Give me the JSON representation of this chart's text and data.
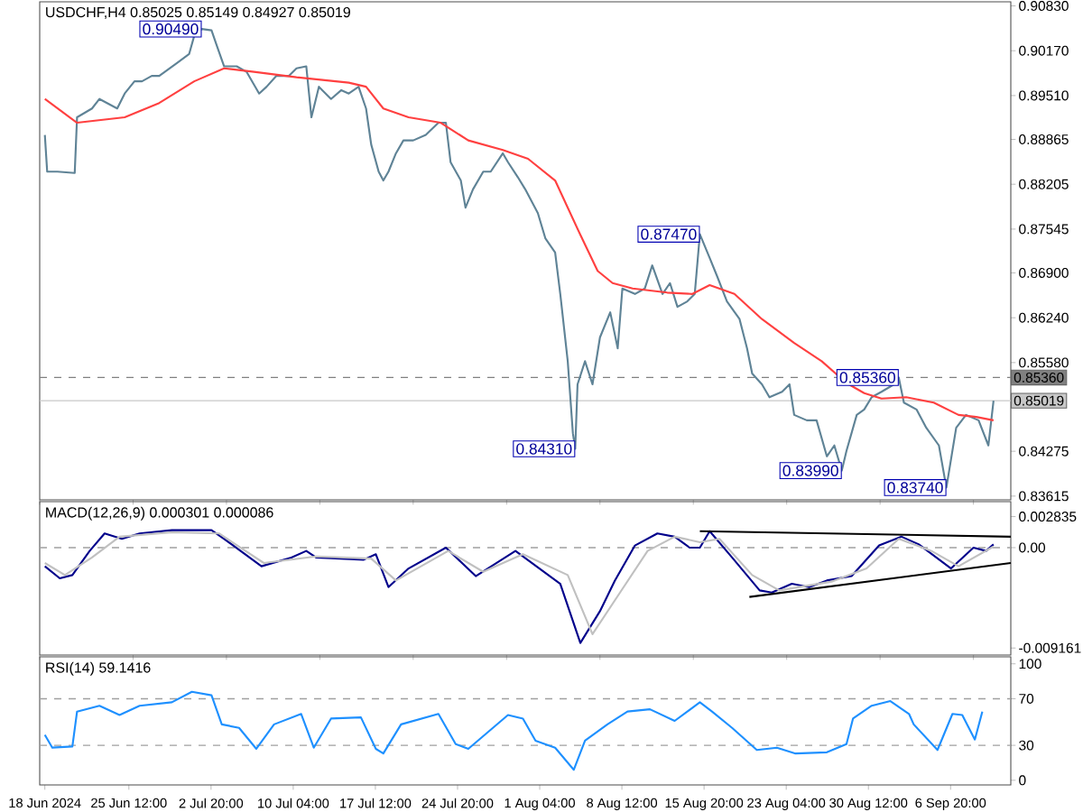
{
  "chart_data": [
    {
      "type": "line",
      "title": "USDCHF,H4 0.85025 0.85149 0.84927 0.85019",
      "xlim": [
        "2024-06-17T13:00",
        "2024-09-12T05:00"
      ],
      "ylim": [
        0.8356,
        0.9089
      ],
      "tick_labels": "y",
      "yticks": [
        {
          "value": 0.9083,
          "label": "0.90830"
        },
        {
          "value": 0.9017,
          "label": "0.90170"
        },
        {
          "value": 0.8951,
          "label": "0.89510"
        },
        {
          "value": 0.88865,
          "label": "0.88865"
        },
        {
          "value": 0.88205,
          "label": "0.88205"
        },
        {
          "value": 0.87545,
          "label": "0.87545"
        },
        {
          "value": 0.869,
          "label": "0.86900"
        },
        {
          "value": 0.8624,
          "label": "0.86240"
        },
        {
          "value": 0.8558,
          "label": "0.85580"
        },
        {
          "value": 0.84275,
          "label": "0.84275"
        },
        {
          "value": 0.83615,
          "label": "0.83615"
        }
      ],
      "series": [
        {
          "color": "#5f8396",
          "x": [
            "2024-06-18T00:00",
            "2024-06-18T05:00",
            "2024-06-19T03:00",
            "2024-06-20T16:00",
            "2024-06-20T21:00",
            "2024-06-22T05:00",
            "2024-06-22T21:00",
            "2024-06-24T11:00",
            "2024-06-25T03:00",
            "2024-06-26T00:00",
            "2024-06-26T16:00",
            "2024-06-27T13:00",
            "2024-06-28T05:00",
            "2024-06-29T19:00",
            "2024-06-30T21:00",
            "2024-07-01T08:00",
            "2024-07-02T00:00",
            "2024-07-02T21:00",
            "2024-07-03T08:00",
            "2024-07-04T00:00",
            "2024-07-05T03:00",
            "2024-07-06T00:00",
            "2024-07-07T03:00",
            "2024-07-07T19:00",
            "2024-07-08T16:00",
            "2024-07-09T19:00",
            "2024-07-10T11:00",
            "2024-07-11T08:00",
            "2024-07-11T19:00",
            "2024-07-12T11:00",
            "2024-07-13T13:00",
            "2024-07-14T11:00",
            "2024-07-15T03:00",
            "2024-07-16T00:00",
            "2024-07-16T16:00",
            "2024-07-17T03:00",
            "2024-07-17T19:00",
            "2024-07-18T05:00",
            "2024-07-18T16:00",
            "2024-07-19T08:00",
            "2024-07-20T00:00",
            "2024-07-20T21:00",
            "2024-07-22T00:00",
            "2024-07-23T03:00",
            "2024-07-23T19:00",
            "2024-07-24T05:00",
            "2024-07-25T03:00",
            "2024-07-25T13:00",
            "2024-07-26T05:00",
            "2024-07-27T03:00",
            "2024-07-27T19:00",
            "2024-07-28T21:00",
            "2024-07-29T08:00",
            "2024-07-30T05:00",
            "2024-07-30T21:00",
            "2024-08-01T00:00",
            "2024-08-01T16:00",
            "2024-08-02T13:00",
            "2024-08-03T00:00",
            "2024-08-03T16:00",
            "2024-08-04T03:00",
            "2024-08-04T08:00",
            "2024-08-04T13:00",
            "2024-08-05T05:00",
            "2024-08-05T21:00",
            "2024-08-06T13:00",
            "2024-08-07T11:00",
            "2024-08-08T03:00",
            "2024-08-08T13:00",
            "2024-08-09T16:00",
            "2024-08-10T13:00",
            "2024-08-11T05:00",
            "2024-08-12T03:00",
            "2024-08-12T19:00",
            "2024-08-13T11:00",
            "2024-08-14T08:00",
            "2024-08-15T00:00",
            "2024-08-15T11:00",
            "2024-08-16T08:00",
            "2024-08-17T00:00",
            "2024-08-17T21:00",
            "2024-08-19T00:00",
            "2024-08-19T16:00",
            "2024-08-20T03:00",
            "2024-08-21T00:00",
            "2024-08-21T16:00",
            "2024-08-22T19:00",
            "2024-08-23T11:00",
            "2024-08-23T21:00",
            "2024-08-25T00:00",
            "2024-08-25T21:00",
            "2024-08-26T19:00",
            "2024-08-27T11:00",
            "2024-08-28T03:00",
            "2024-08-28T13:00",
            "2024-08-29T11:00",
            "2024-08-30T03:00",
            "2024-08-30T19:00",
            "2024-08-31T16:00",
            "2024-09-01T19:00",
            "2024-09-02T05:00",
            "2024-09-02T16:00",
            "2024-09-03T19:00",
            "2024-09-04T16:00",
            "2024-09-05T19:00",
            "2024-09-06T11:00",
            "2024-09-07T08:00",
            "2024-09-08T05:00",
            "2024-09-09T08:00",
            "2024-09-10T05:00",
            "2024-09-10T16:00"
          ],
          "values": [
            0.8893,
            0.8839,
            0.8839,
            0.8837,
            0.8919,
            0.8932,
            0.8946,
            0.8932,
            0.8954,
            0.8972,
            0.8972,
            0.898,
            0.898,
            0.8999,
            0.9012,
            0.9039,
            0.9049,
            0.9047,
            0.9025,
            0.8994,
            0.8994,
            0.8986,
            0.8954,
            0.8964,
            0.898,
            0.898,
            0.8991,
            0.8994,
            0.8919,
            0.8964,
            0.8946,
            0.8959,
            0.8954,
            0.8964,
            0.8932,
            0.8879,
            0.8839,
            0.8826,
            0.8839,
            0.8866,
            0.8885,
            0.8885,
            0.8893,
            0.8911,
            0.8911,
            0.8853,
            0.8826,
            0.8786,
            0.8813,
            0.8839,
            0.8839,
            0.8866,
            0.8853,
            0.8831,
            0.8813,
            0.8778,
            0.8741,
            0.872,
            0.8659,
            0.856,
            0.8454,
            0.8431,
            0.8526,
            0.856,
            0.8526,
            0.8595,
            0.8632,
            0.8579,
            0.8667,
            0.8659,
            0.8667,
            0.8701,
            0.8659,
            0.8675,
            0.864,
            0.8648,
            0.8659,
            0.8747,
            0.8712,
            0.8685,
            0.8648,
            0.8622,
            0.8579,
            0.8542,
            0.8526,
            0.8507,
            0.8515,
            0.8526,
            0.8481,
            0.8473,
            0.8473,
            0.842,
            0.8436,
            0.8399,
            0.8428,
            0.8481,
            0.8489,
            0.8507,
            0.8515,
            0.8526,
            0.8536,
            0.8499,
            0.8489,
            0.8462,
            0.8436,
            0.8374,
            0.8462,
            0.8481,
            0.8473,
            0.8436,
            0.8502
          ]
        },
        {
          "color": "#ff4040",
          "x": [
            "2024-06-18T00:00",
            "2024-06-20T21:00",
            "2024-06-25T03:00",
            "2024-06-28T05:00",
            "2024-07-01T08:00",
            "2024-07-04T00:00",
            "2024-07-06T16:00",
            "2024-07-10T11:00",
            "2024-07-15T03:00",
            "2024-07-16T16:00",
            "2024-07-18T05:00",
            "2024-07-20T11:00",
            "2024-07-23T08:00",
            "2024-07-25T19:00",
            "2024-07-28T21:00",
            "2024-07-31T03:00",
            "2024-08-02T13:00",
            "2024-08-04T19:00",
            "2024-08-06T08:00",
            "2024-08-07T16:00",
            "2024-08-09T11:00",
            "2024-08-12T13:00",
            "2024-08-14T19:00",
            "2024-08-16T08:00",
            "2024-08-18T13:00",
            "2024-08-21T00:00",
            "2024-08-23T21:00",
            "2024-08-26T08:00",
            "2024-08-28T13:00",
            "2024-08-30T03:00",
            "2024-08-31T16:00",
            "2024-09-02T21:00",
            "2024-09-05T08:00",
            "2024-09-07T13:00",
            "2024-09-09T03:00",
            "2024-09-10T16:00"
          ],
          "values": [
            0.8946,
            0.8911,
            0.8919,
            0.894,
            0.8972,
            0.8991,
            0.8986,
            0.8978,
            0.897,
            0.8964,
            0.8932,
            0.8919,
            0.8911,
            0.8885,
            0.8871,
            0.8858,
            0.8826,
            0.8746,
            0.8693,
            0.8675,
            0.8667,
            0.8661,
            0.8659,
            0.8672,
            0.8659,
            0.8622,
            0.8587,
            0.856,
            0.8528,
            0.8513,
            0.8505,
            0.8507,
            0.8499,
            0.8481,
            0.8478,
            0.8473
          ]
        }
      ],
      "ref_lines": [
        {
          "axis": "y",
          "value": 0.8536,
          "label": "0.85360",
          "color": "#808080",
          "line_style": "dashed"
        },
        {
          "axis": "y",
          "value": 0.85019,
          "label": "0.85019",
          "color": "#c8c8c8",
          "line_style": "solid"
        }
      ],
      "annotations": [
        {
          "text": "0.90490",
          "x": "2024-07-02T00:00",
          "y": 0.9049
        },
        {
          "text": "0.84310",
          "x": "2024-08-04T08:00",
          "y": 0.8431
        },
        {
          "text": "0.87470",
          "x": "2024-08-15T11:00",
          "y": 0.8747
        },
        {
          "text": "0.83990",
          "x": "2024-08-28T03:00",
          "y": 0.8399
        },
        {
          "text": "0.85360",
          "x": "2024-09-02T05:00",
          "y": 0.8536
        },
        {
          "text": "0.83740",
          "x": "2024-09-06T11:00",
          "y": 0.8374
        }
      ]
    },
    {
      "type": "line",
      "title": "MACD(12,26,9) 0.000301 0.000086",
      "xlim": [
        "2024-06-17T13:00",
        "2024-09-12T05:00"
      ],
      "ylim": [
        -0.0098,
        0.0042
      ],
      "tick_labels": "y",
      "yticks": [
        0.002835,
        {
          "value": 0,
          "label": "0.00"
        },
        -0.009161
      ],
      "series": [
        {
          "color": "#00008b",
          "x": [
            "2024-06-18T00:00",
            "2024-06-19T08:00",
            "2024-06-20T11:00",
            "2024-06-22T00:00",
            "2024-06-23T08:00",
            "2024-06-24T21:00",
            "2024-06-26T11:00",
            "2024-06-29T08:00",
            "2024-07-02T21:00",
            "2024-07-04T00:00",
            "2024-07-07T08:00",
            "2024-07-10T00:00",
            "2024-07-11T08:00",
            "2024-07-12T05:00",
            "2024-07-16T11:00",
            "2024-07-17T13:00",
            "2024-07-18T16:00",
            "2024-07-20T11:00",
            "2024-07-23T19:00",
            "2024-07-26T11:00",
            "2024-07-30T00:00",
            "2024-08-03T00:00",
            "2024-08-04T19:00",
            "2024-08-06T13:00",
            "2024-08-07T21:00",
            "2024-08-09T16:00",
            "2024-08-11T16:00",
            "2024-08-13T05:00",
            "2024-08-14T13:00",
            "2024-08-15T11:00",
            "2024-08-16T08:00",
            "2024-08-18T08:00",
            "2024-08-20T19:00",
            "2024-08-21T21:00",
            "2024-08-23T16:00",
            "2024-08-25T05:00",
            "2024-08-26T19:00",
            "2024-08-29T00:00",
            "2024-08-31T11:00",
            "2024-09-02T11:00",
            "2024-09-04T00:00",
            "2024-09-06T21:00",
            "2024-09-08T21:00",
            "2024-09-10T00:00",
            "2024-09-10T16:00"
          ],
          "values": [
            -0.0017,
            -0.0028,
            -0.0025,
            -0.0003,
            0.0013,
            0.0008,
            0.0013,
            0.0016,
            0.0016,
            0.0008,
            -0.0017,
            -0.0009,
            -0.0003,
            -0.0009,
            -0.0011,
            -0.0006,
            -0.0036,
            -0.0019,
            0,
            -0.0026,
            -0.0003,
            -0.0033,
            -0.0087,
            -0.0058,
            -0.003,
            0.0002,
            0.0013,
            0.001,
            0,
            0,
            0.0015,
            -0.0009,
            -0.0039,
            -0.0041,
            -0.0033,
            -0.0036,
            -0.003,
            -0.0026,
            0.0002,
            0.001,
            0.0003,
            -0.0019,
            0,
            -0.0003,
            0.0003
          ]
        },
        {
          "color": "#c0c0c0",
          "x": [
            "2024-06-18T00:00",
            "2024-06-19T19:00",
            "2024-06-22T05:00",
            "2024-06-24T16:00",
            "2024-06-29T08:00",
            "2024-07-03T13:00",
            "2024-07-07T13:00",
            "2024-07-12T05:00",
            "2024-07-17T03:00",
            "2024-07-19T08:00",
            "2024-07-24T00:00",
            "2024-07-27T03:00",
            "2024-07-30T16:00",
            "2024-08-03T16:00",
            "2024-08-05T21:00",
            "2024-08-08T08:00",
            "2024-08-10T19:00",
            "2024-08-13T05:00",
            "2024-08-15T11:00",
            "2024-08-17T05:00",
            "2024-08-20T03:00",
            "2024-08-22T13:00",
            "2024-08-27T05:00",
            "2024-08-30T08:00",
            "2024-09-02T05:00",
            "2024-09-05T03:00",
            "2024-09-07T13:00",
            "2024-09-10T16:00"
          ],
          "values": [
            -0.0014,
            -0.0025,
            -0.0009,
            0.001,
            0.0014,
            0.0013,
            -0.0014,
            -0.0008,
            -0.001,
            -0.003,
            -0.0003,
            -0.0022,
            -0.0006,
            -0.0025,
            -0.0079,
            -0.0041,
            -0.0003,
            0.001,
            0.0005,
            0.0008,
            -0.0025,
            -0.0039,
            -0.0031,
            -0.0019,
            0.0008,
            -0.0003,
            -0.0017,
            0.0001
          ]
        },
        {
          "color": "#000000",
          "x": [
            "2024-08-15T11:00",
            "2024-09-12T05:00"
          ],
          "values": [
            0.0015,
            0.001
          ]
        },
        {
          "color": "#000000",
          "x": [
            "2024-08-19T21:00",
            "2024-09-12T05:00"
          ],
          "values": [
            -0.0045,
            -0.0014
          ]
        }
      ],
      "ref_lines": [
        {
          "axis": "y",
          "value": 0,
          "color": "#a0a0a0",
          "line_style": "dashed"
        }
      ]
    },
    {
      "type": "line",
      "title": "RSI(14) 59.1416",
      "xlim": [
        "2024-06-17T13:00",
        "2024-09-12T05:00"
      ],
      "ylim": [
        -4,
        106
      ],
      "yticks": [
        0,
        30,
        70,
        100
      ],
      "xticks": [
        {
          "value": "2024-06-18T00:00",
          "label": "18 Jun 2024"
        },
        {
          "value": "2024-06-25T12:00",
          "label": "25 Jun 12:00"
        },
        {
          "value": "2024-07-02T20:00",
          "label": "2 Jul 20:00"
        },
        {
          "value": "2024-07-10T04:00",
          "label": "10 Jul 04:00"
        },
        {
          "value": "2024-07-17T12:00",
          "label": "17 Jul 12:00"
        },
        {
          "value": "2024-07-24T20:00",
          "label": "24 Jul 20:00"
        },
        {
          "value": "2024-08-01T04:00",
          "label": "1 Aug 04:00"
        },
        {
          "value": "2024-08-08T12:00",
          "label": "8 Aug 12:00"
        },
        {
          "value": "2024-08-15T20:00",
          "label": "15 Aug 20:00"
        },
        {
          "value": "2024-08-23T04:00",
          "label": "23 Aug 04:00"
        },
        {
          "value": "2024-08-30T12:00",
          "label": "30 Aug 12:00"
        },
        {
          "value": "2024-09-06T20:00",
          "label": "6 Sep 20:00"
        }
      ],
      "series": [
        {
          "color": "#1e90ff",
          "x": [
            "2024-06-18T00:00",
            "2024-06-18T16:00",
            "2024-06-20T11:00",
            "2024-06-20T21:00",
            "2024-06-22T21:00",
            "2024-06-24T16:00",
            "2024-06-26T11:00",
            "2024-06-29T08:00",
            "2024-07-01T03:00",
            "2024-07-02T21:00",
            "2024-07-03T19:00",
            "2024-07-05T08:00",
            "2024-07-06T21:00",
            "2024-07-08T11:00",
            "2024-07-10T21:00",
            "2024-07-12T00:00",
            "2024-07-13T13:00",
            "2024-07-16T05:00",
            "2024-07-17T13:00",
            "2024-07-18T05:00",
            "2024-07-19T19:00",
            "2024-07-23T03:00",
            "2024-07-24T16:00",
            "2024-07-25T19:00",
            "2024-07-29T08:00",
            "2024-07-30T16:00",
            "2024-07-31T19:00",
            "2024-08-02T13:00",
            "2024-08-04T05:00",
            "2024-08-05T05:00",
            "2024-08-07T05:00",
            "2024-08-09T00:00",
            "2024-08-11T00:00",
            "2024-08-13T05:00",
            "2024-08-15T11:00",
            "2024-08-16T13:00",
            "2024-08-18T08:00",
            "2024-08-20T13:00",
            "2024-08-22T08:00",
            "2024-08-24T00:00",
            "2024-08-26T19:00",
            "2024-08-28T13:00",
            "2024-08-29T03:00",
            "2024-08-30T19:00",
            "2024-09-01T11:00",
            "2024-09-03T03:00",
            "2024-09-03T13:00",
            "2024-09-05T16:00",
            "2024-09-07T00:00",
            "2024-09-07T21:00",
            "2024-09-09T00:00",
            "2024-09-09T16:00"
          ],
          "values": [
            39,
            28,
            29,
            59,
            64,
            56,
            64,
            67,
            76,
            73,
            48,
            45,
            27,
            48,
            57,
            28,
            53,
            54,
            27,
            23,
            48,
            57,
            31,
            27,
            56,
            53,
            34,
            28,
            9,
            34,
            48,
            59,
            61,
            51,
            67,
            59,
            45,
            26,
            28,
            23,
            24,
            31,
            53,
            64,
            68,
            57,
            48,
            26,
            57,
            56,
            35,
            59
          ]
        }
      ],
      "ref_lines": [
        {
          "axis": "y",
          "value": 30,
          "color": "#a0a0a0",
          "line_style": "dashed"
        },
        {
          "axis": "y",
          "value": 70,
          "color": "#a0a0a0",
          "line_style": "dashed"
        }
      ]
    }
  ]
}
